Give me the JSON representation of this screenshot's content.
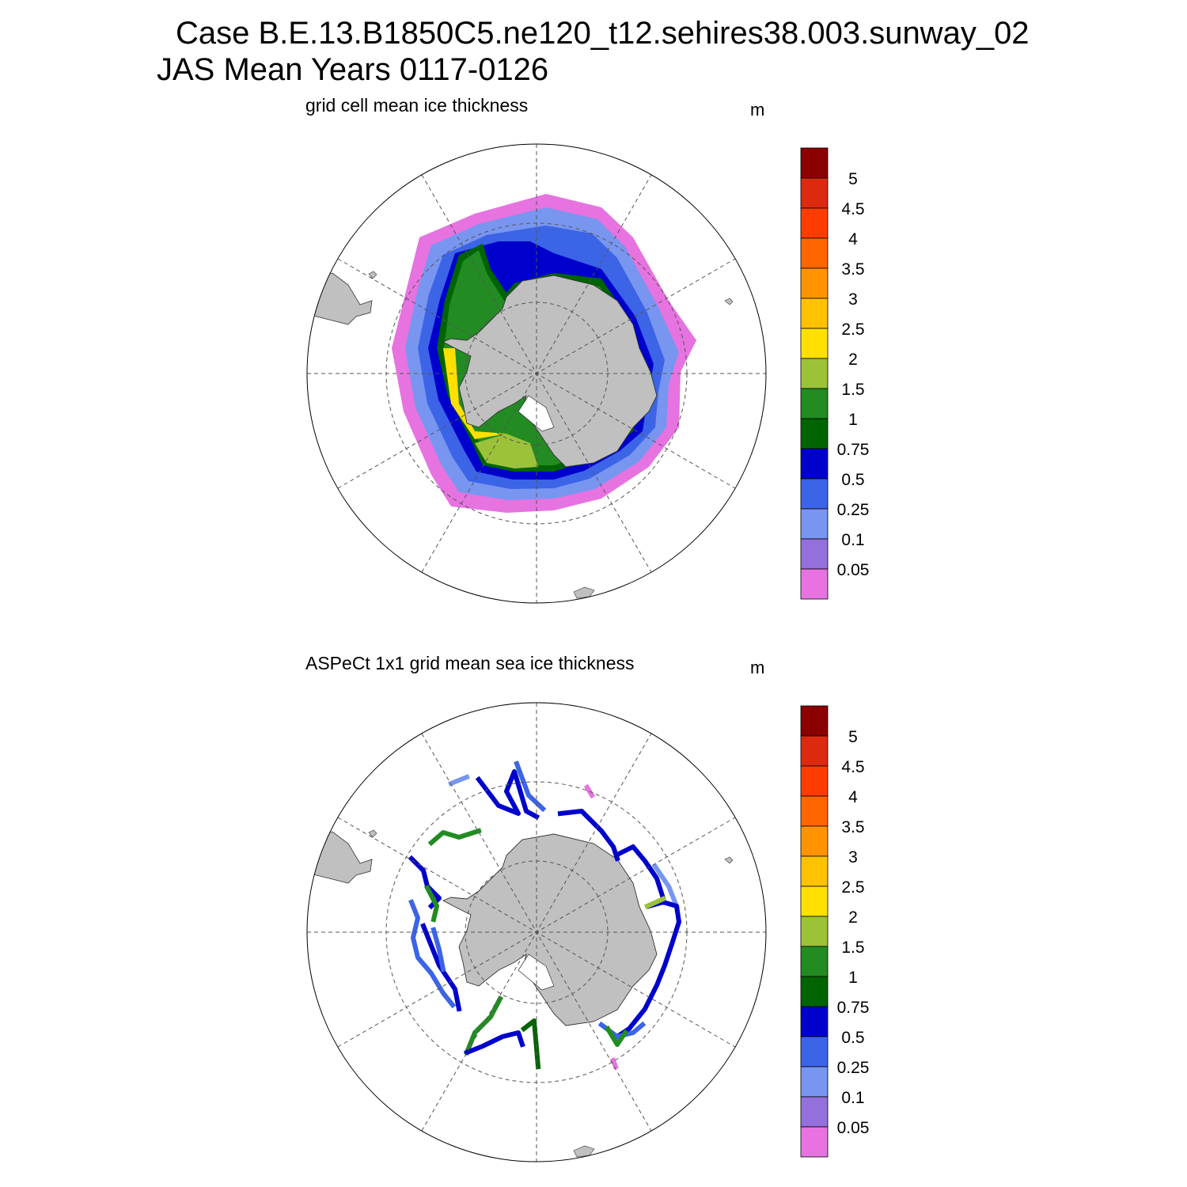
{
  "title": {
    "line1": "Case B.E.13.B1850C5.ne120_t12.sehires38.003.sunway_02",
    "line2": "JAS Mean   Years 0117-0126"
  },
  "panels": [
    {
      "id": "top",
      "title": "grid cell mean ice thickness",
      "units": "m"
    },
    {
      "id": "bottom",
      "title": "ASPeCt 1x1 grid mean sea ice thickness",
      "units": "m"
    }
  ],
  "colorbar": {
    "labels": [
      "5",
      "4.5",
      "4",
      "3.5",
      "3",
      "2.5",
      "2",
      "1.5",
      "1",
      "0.75",
      "0.5",
      "0.25",
      "0.1",
      "0.05"
    ],
    "colors": [
      "#8b0000",
      "#dc2a10",
      "#ff3c00",
      "#ff6600",
      "#ff9400",
      "#ffc200",
      "#ffe000",
      "#9cc23a",
      "#228b22",
      "#006400",
      "#0000cd",
      "#3c64e6",
      "#7896f0",
      "#9370db",
      "#e673e0"
    ]
  },
  "colors": {
    "land": "#c0c0c0",
    "ocean": "#ffffff"
  }
}
